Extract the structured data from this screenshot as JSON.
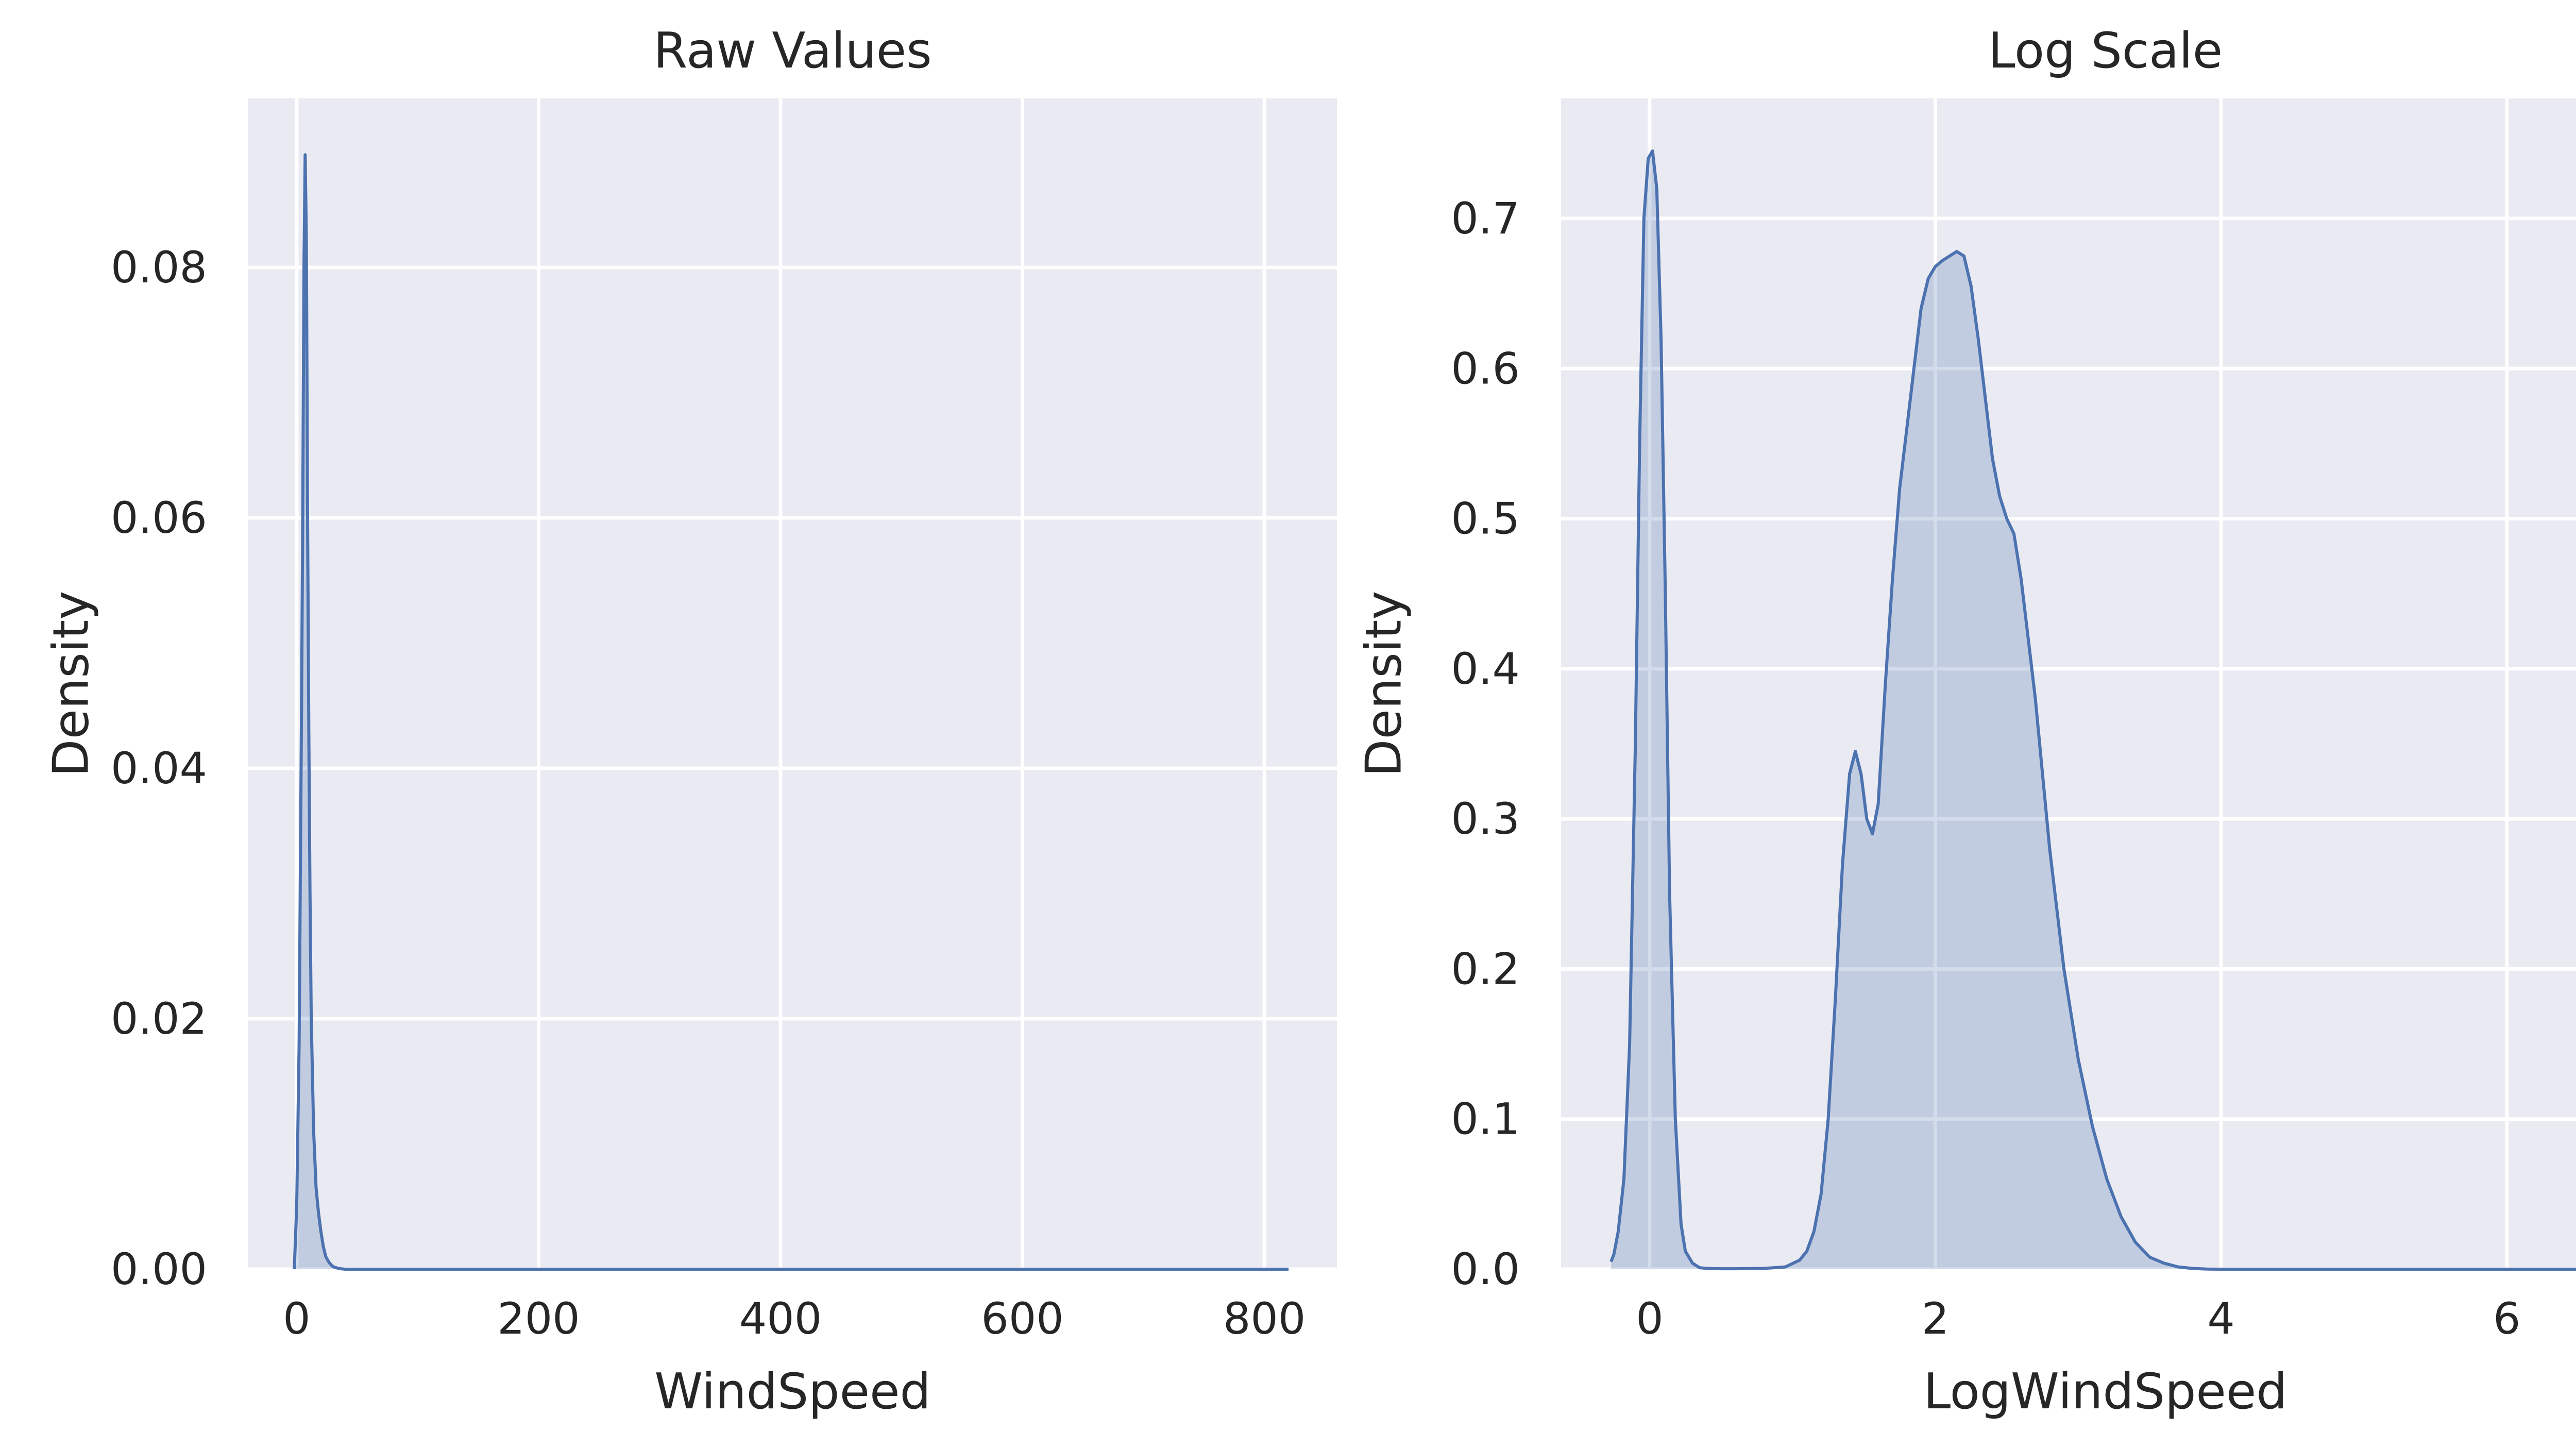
{
  "chart_data": [
    {
      "type": "area",
      "title": "Raw Values",
      "xlabel": "WindSpeed",
      "ylabel": "Density",
      "xlim": [
        -40,
        860
      ],
      "ylim": [
        0,
        0.0935
      ],
      "xticks": [
        0,
        200,
        400,
        600,
        800
      ],
      "xtick_labels": [
        "0",
        "200",
        "400",
        "600",
        "800"
      ],
      "yticks": [
        0,
        0.02,
        0.04,
        0.06,
        0.08
      ],
      "ytick_labels": [
        "0.00",
        "0.02",
        "0.04",
        "0.06",
        "0.08"
      ],
      "grid": true,
      "filled": true,
      "series": [
        {
          "x": [
            -2,
            0,
            2,
            4,
            5,
            6,
            7,
            8,
            9,
            10,
            11,
            12,
            14,
            16,
            18,
            20,
            22,
            24,
            27,
            30,
            35,
            40,
            60,
            200,
            400,
            600,
            800,
            820
          ],
          "y": [
            0,
            0.005,
            0.018,
            0.045,
            0.06,
            0.08,
            0.089,
            0.082,
            0.06,
            0.043,
            0.03,
            0.02,
            0.011,
            0.0065,
            0.0045,
            0.003,
            0.0018,
            0.001,
            0.0005,
            0.0002,
            5e-05,
            0,
            0,
            0,
            0,
            0,
            0,
            0
          ]
        }
      ],
      "color": "#4c72b0"
    },
    {
      "type": "area",
      "title": "Log Scale",
      "xlabel": "LogWindSpeed",
      "ylabel": "Density",
      "xlim": [
        -0.62,
        7.0
      ],
      "ylim": [
        0,
        0.78
      ],
      "xticks": [
        0,
        2,
        4,
        6
      ],
      "xtick_labels": [
        "0",
        "2",
        "4",
        "6"
      ],
      "yticks": [
        0,
        0.1,
        0.2,
        0.3,
        0.4,
        0.5,
        0.6,
        0.7
      ],
      "ytick_labels": [
        "0.0",
        "0.1",
        "0.2",
        "0.3",
        "0.4",
        "0.5",
        "0.6",
        "0.7"
      ],
      "grid": true,
      "filled": true,
      "series": [
        {
          "x": [
            -0.27,
            -0.25,
            -0.22,
            -0.18,
            -0.14,
            -0.1,
            -0.07,
            -0.04,
            -0.01,
            0.02,
            0.05,
            0.08,
            0.11,
            0.14,
            0.18,
            0.22,
            0.25,
            0.3,
            0.35,
            0.4,
            0.5,
            0.6,
            0.8,
            0.95,
            1.05,
            1.1,
            1.15,
            1.2,
            1.25,
            1.3,
            1.35,
            1.4,
            1.44,
            1.48,
            1.52,
            1.56,
            1.6,
            1.65,
            1.7,
            1.75,
            1.8,
            1.85,
            1.9,
            1.95,
            2.0,
            2.05,
            2.1,
            2.15,
            2.2,
            2.25,
            2.3,
            2.35,
            2.4,
            2.45,
            2.5,
            2.55,
            2.6,
            2.65,
            2.7,
            2.75,
            2.8,
            2.9,
            3.0,
            3.1,
            3.2,
            3.3,
            3.4,
            3.5,
            3.6,
            3.7,
            3.8,
            3.9,
            4.0,
            4.5,
            6.0,
            6.9
          ],
          "y": [
            0.005,
            0.01,
            0.025,
            0.06,
            0.15,
            0.35,
            0.55,
            0.7,
            0.74,
            0.745,
            0.72,
            0.62,
            0.45,
            0.25,
            0.1,
            0.03,
            0.012,
            0.004,
            0.001,
            0.0005,
            0.0003,
            0.0003,
            0.0005,
            0.0015,
            0.006,
            0.012,
            0.025,
            0.05,
            0.1,
            0.18,
            0.27,
            0.33,
            0.345,
            0.33,
            0.3,
            0.29,
            0.31,
            0.39,
            0.46,
            0.52,
            0.56,
            0.6,
            0.64,
            0.66,
            0.668,
            0.672,
            0.675,
            0.678,
            0.675,
            0.655,
            0.62,
            0.58,
            0.54,
            0.515,
            0.5,
            0.49,
            0.46,
            0.42,
            0.38,
            0.33,
            0.28,
            0.2,
            0.14,
            0.095,
            0.06,
            0.035,
            0.018,
            0.008,
            0.004,
            0.0015,
            0.0005,
            0.0001,
            0,
            0,
            0,
            0
          ]
        }
      ],
      "color": "#4c72b0"
    }
  ]
}
